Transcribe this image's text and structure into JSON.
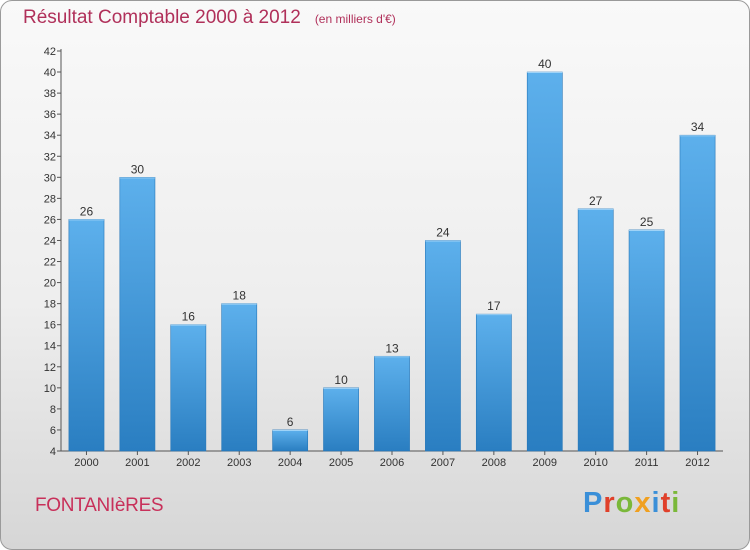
{
  "header": {
    "title": "Résultat Comptable 2000 à 2012",
    "subtitle": "(en milliers d'€)"
  },
  "footer": {
    "place": "FONTANIèRES",
    "logo": "Proxiti"
  },
  "colors": {
    "title": "#b0305a",
    "bar_light": "#5db0ec",
    "bar_dark": "#2a7ec1",
    "logo_letters": [
      "#3a8fd8",
      "#e0402a",
      "#7ab83a",
      "#f0a020",
      "#3a8fd8",
      "#e0402a",
      "#7ab83a"
    ]
  },
  "chart_data": {
    "type": "bar",
    "title": "Résultat Comptable 2000 à 2012",
    "subtitle": "(en milliers d'€)",
    "xlabel": "",
    "ylabel": "",
    "categories": [
      "2000",
      "2001",
      "2002",
      "2003",
      "2004",
      "2005",
      "2006",
      "2007",
      "2008",
      "2009",
      "2010",
      "2011",
      "2012"
    ],
    "values": [
      26,
      30,
      16,
      18,
      6,
      10,
      13,
      24,
      17,
      40,
      27,
      25,
      34
    ],
    "ylim": [
      4,
      42
    ],
    "yticks": [
      4,
      6,
      8,
      10,
      12,
      14,
      16,
      18,
      20,
      22,
      24,
      26,
      28,
      30,
      32,
      34,
      36,
      38,
      40,
      42
    ],
    "grid": false,
    "legend": "none",
    "data_labels": true
  }
}
